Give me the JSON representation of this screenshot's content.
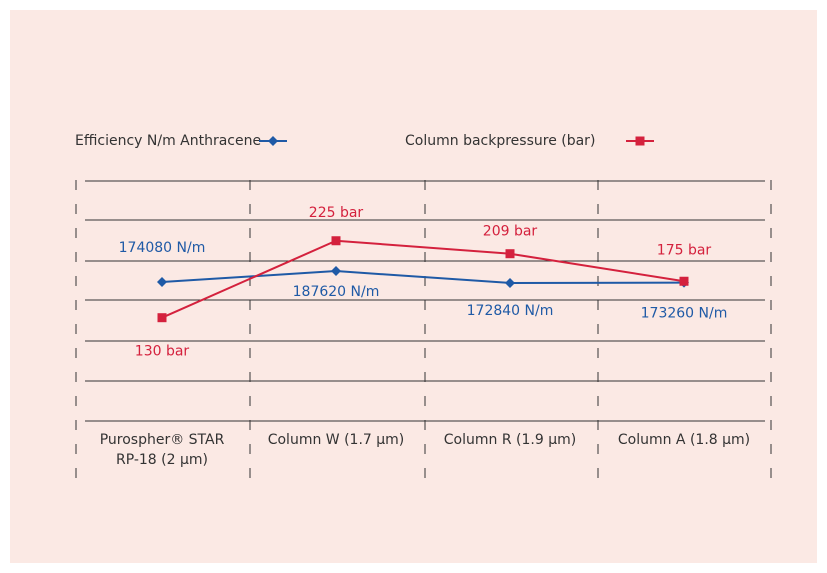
{
  "chart_data": {
    "type": "line",
    "categories": [
      "Purospher® STAR RP-18 (2 µm)",
      "Column W (1.7 µm)",
      "Column R (1.9 µm)",
      "Column A (1.8 µm)"
    ],
    "series": [
      {
        "name": "Efficiency N/m Anthracene",
        "color": "#1f5aa6",
        "values": [
          174080,
          187620,
          172840,
          173260
        ],
        "value_labels": [
          "174080 N/m",
          "187620 N/m",
          "172840 N/m",
          "173260 N/m"
        ]
      },
      {
        "name": "Column backpressure (bar)",
        "color": "#d4213d",
        "axis": "y2",
        "values": [
          130,
          225,
          209,
          175
        ],
        "value_labels": [
          "130 bar",
          "225 bar",
          "209 bar",
          "175 bar"
        ]
      }
    ],
    "ylim": [
      0,
      300000
    ],
    "y2lim": [
      0,
      300
    ]
  }
}
